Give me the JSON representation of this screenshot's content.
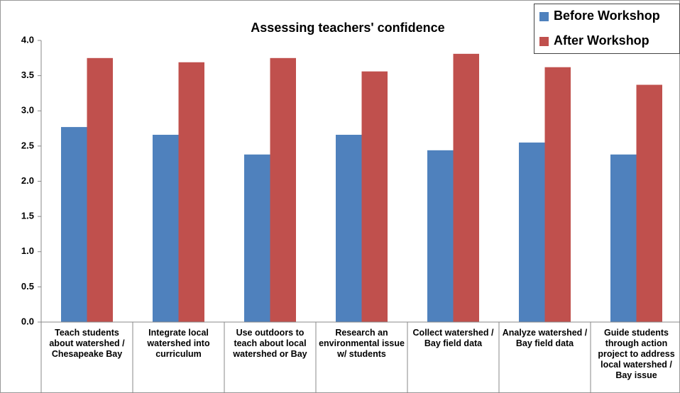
{
  "chart_data": {
    "type": "bar",
    "title": "Assessing teachers' confidence",
    "categories": [
      "Teach students about watershed / Chesapeake Bay",
      "Integrate local watershed into curriculum",
      "Use outdoors to teach about local watershed or Bay",
      "Research an environmental issue w/ students",
      "Collect watershed / Bay field data",
      "Analyze watershed / Bay field data",
      "Guide students through action project to address local watershed / Bay issue"
    ],
    "series": [
      {
        "name": "Before Workshop",
        "color": "#4f81bd",
        "values": [
          2.77,
          2.66,
          2.38,
          2.66,
          2.44,
          2.55,
          2.38
        ]
      },
      {
        "name": "After Workshop",
        "color": "#c0504d",
        "values": [
          3.75,
          3.69,
          3.75,
          3.56,
          3.81,
          3.62,
          3.37
        ]
      }
    ],
    "ylim": [
      0,
      4
    ],
    "yticks": [
      {
        "value": 0,
        "label": "0.0"
      },
      {
        "value": 0.5,
        "label": "0.5"
      },
      {
        "value": 1,
        "label": "1.0"
      },
      {
        "value": 1.5,
        "label": "1.5"
      },
      {
        "value": 2,
        "label": "2.0"
      },
      {
        "value": 2.5,
        "label": "2.5"
      },
      {
        "value": 3,
        "label": "3.0"
      },
      {
        "value": 3.5,
        "label": "3.5"
      },
      {
        "value": 4,
        "label": "4.0"
      }
    ],
    "legend": "top-right",
    "grid": false
  }
}
